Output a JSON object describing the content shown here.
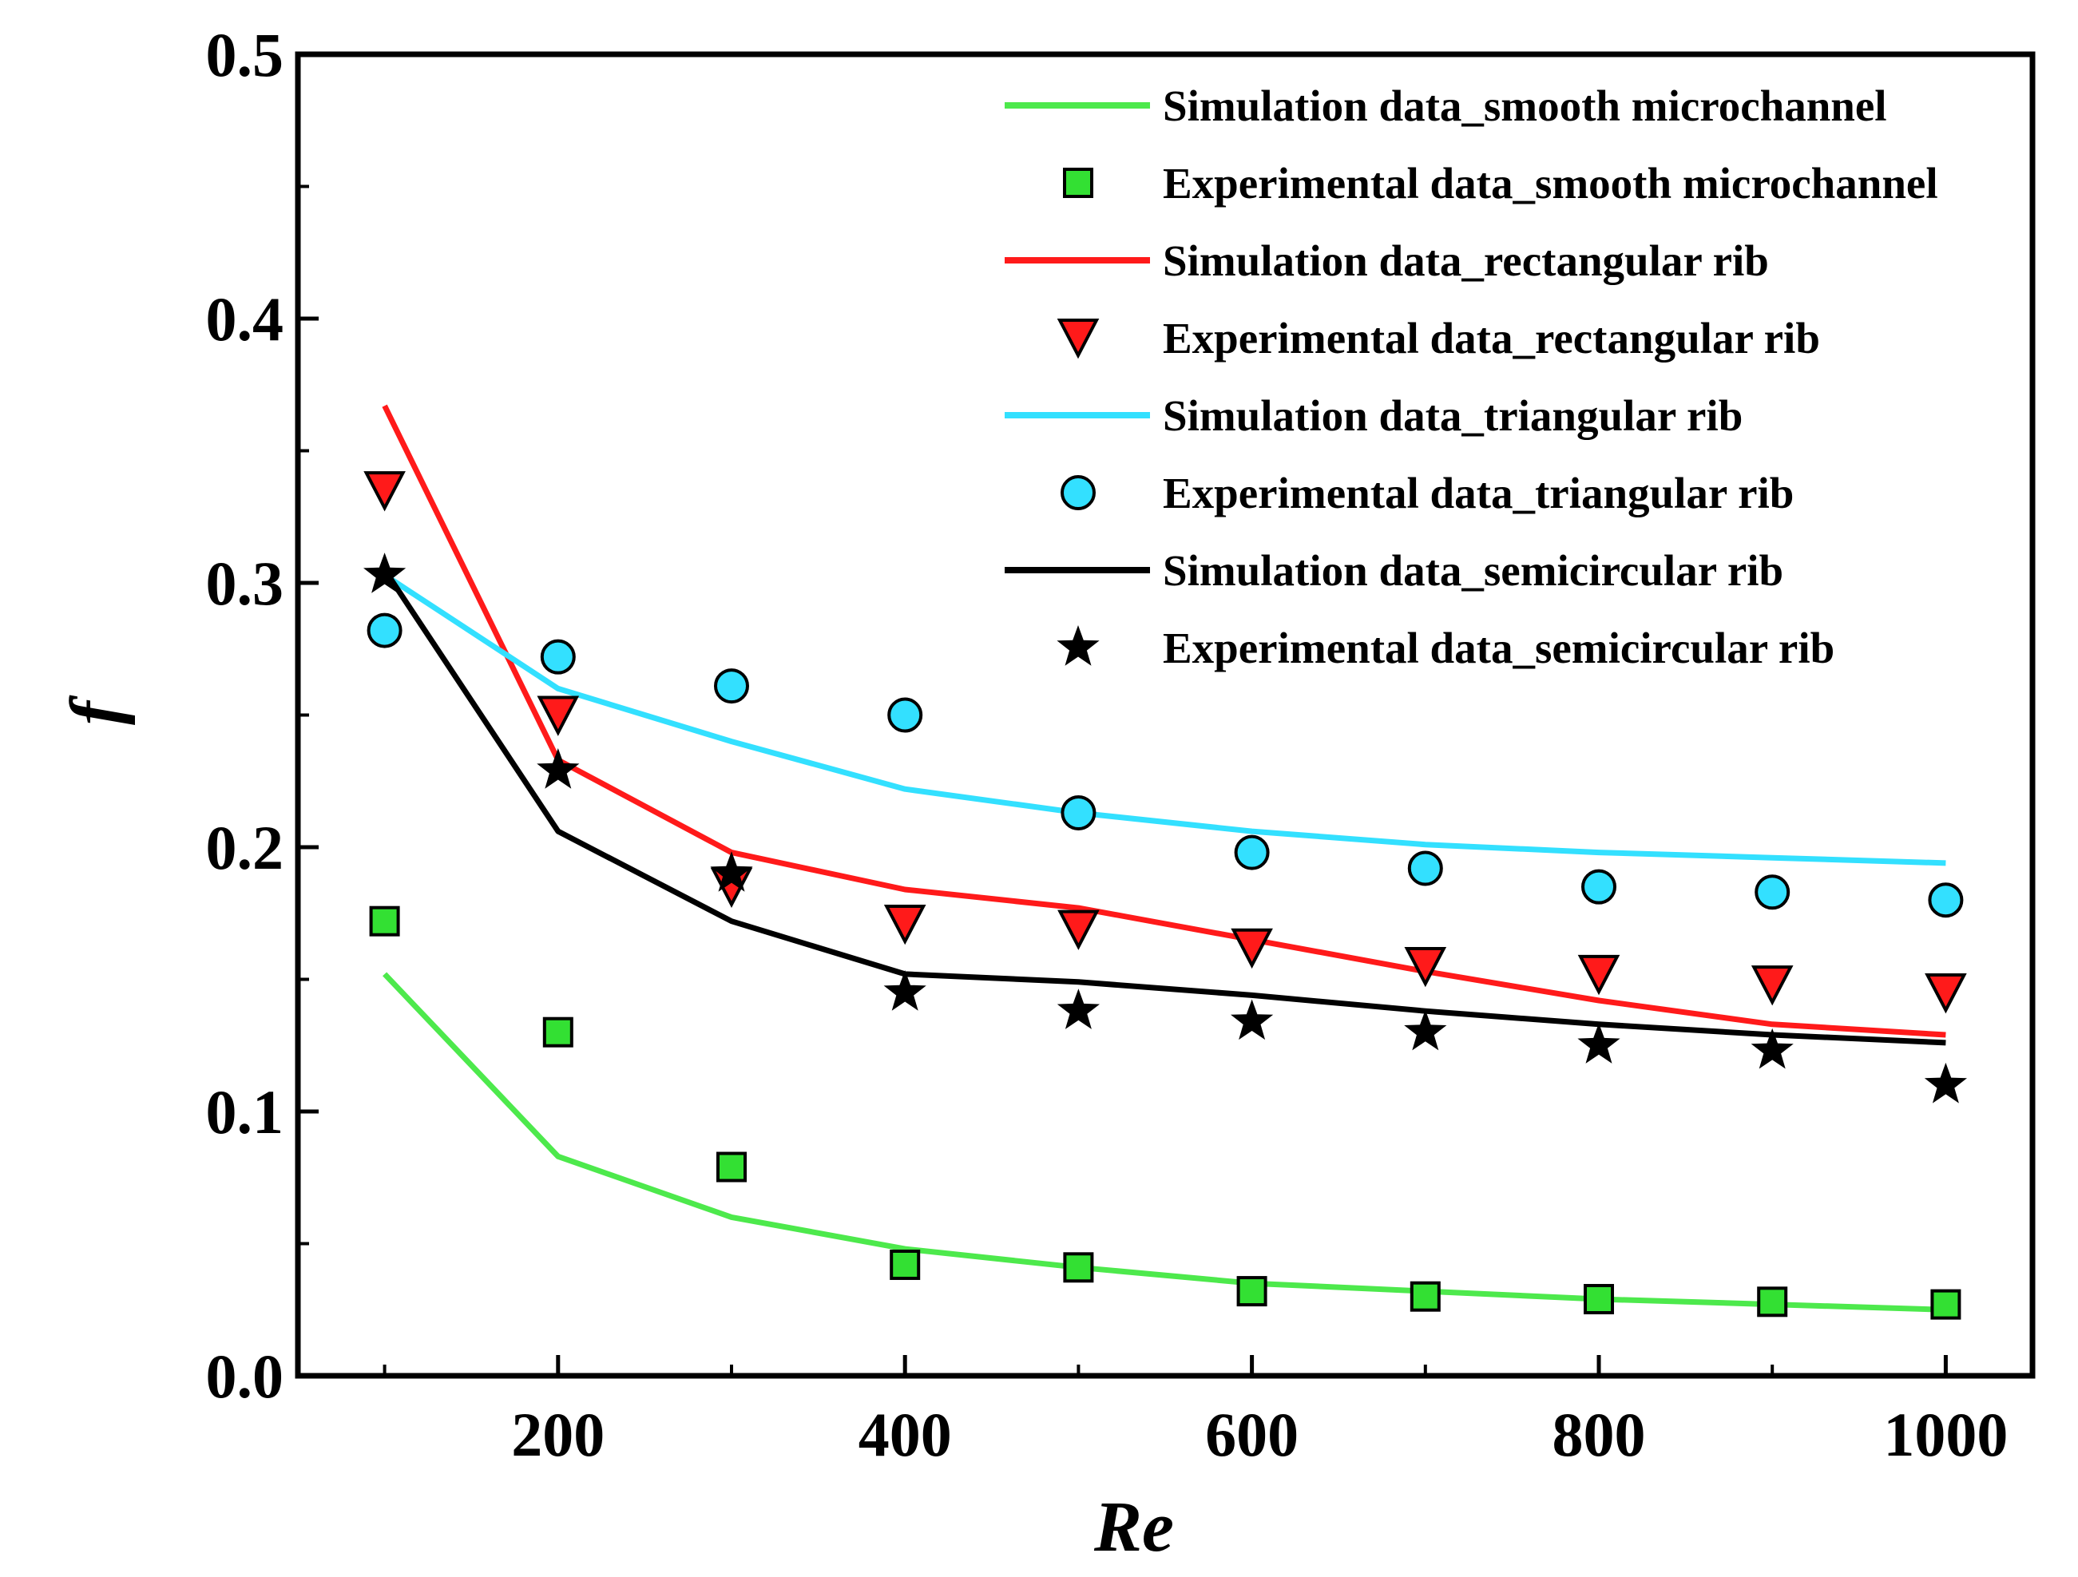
{
  "chart_data": {
    "type": "line",
    "xlabel": "Re",
    "ylabel": "f",
    "xlim": [
      50,
      1050
    ],
    "ylim": [
      0.0,
      0.5
    ],
    "x_ticks": [
      200,
      400,
      600,
      800,
      1000
    ],
    "y_ticks": [
      0.0,
      0.1,
      0.2,
      0.3,
      0.4,
      0.5
    ],
    "x_tick_labels": [
      "200",
      "400",
      "600",
      "800",
      "1000"
    ],
    "y_tick_labels": [
      "0.0",
      "0.1",
      "0.2",
      "0.3",
      "0.4",
      "0.5"
    ],
    "legend_position": "top-right",
    "grid": false,
    "x": [
      100,
      200,
      300,
      400,
      500,
      600,
      700,
      800,
      900,
      1000
    ],
    "series": [
      {
        "name": "Simulation data_smooth microchannel",
        "kind": "line",
        "color": "#4de94c",
        "values": [
          0.152,
          0.083,
          0.06,
          0.048,
          0.041,
          0.035,
          0.032,
          0.029,
          0.027,
          0.025
        ]
      },
      {
        "name": "Experimental data_smooth microchannel",
        "kind": "marker",
        "marker": "square",
        "color": "#33e033",
        "values": [
          0.172,
          0.13,
          0.079,
          0.042,
          0.041,
          0.032,
          0.03,
          0.029,
          0.028,
          0.027
        ]
      },
      {
        "name": "Simulation data_rectangular rib",
        "kind": "line",
        "color": "#ff1a1a",
        "values": [
          0.367,
          0.233,
          0.198,
          0.184,
          0.177,
          0.165,
          0.153,
          0.142,
          0.133,
          0.129
        ]
      },
      {
        "name": "Experimental data_rectangular rib",
        "kind": "marker",
        "marker": "triangle-down",
        "color": "#ff1a1a",
        "values": [
          0.335,
          0.25,
          0.185,
          0.171,
          0.169,
          0.162,
          0.155,
          0.152,
          0.148,
          0.145
        ]
      },
      {
        "name": "Simulation data_triangular rib",
        "kind": "line",
        "color": "#33e0ff",
        "values": [
          0.303,
          0.26,
          0.24,
          0.222,
          0.213,
          0.206,
          0.201,
          0.198,
          0.196,
          0.194
        ]
      },
      {
        "name": "Experimental data_triangular rib",
        "kind": "marker",
        "marker": "circle",
        "color": "#33e0ff",
        "values": [
          0.282,
          0.272,
          0.261,
          0.25,
          0.213,
          0.198,
          0.192,
          0.185,
          0.183,
          0.18
        ]
      },
      {
        "name": "Simulation data_semicircular rib",
        "kind": "line",
        "color": "#000000",
        "values": [
          0.305,
          0.206,
          0.172,
          0.152,
          0.149,
          0.144,
          0.138,
          0.133,
          0.129,
          0.126
        ]
      },
      {
        "name": "Experimental data_semicircular rib",
        "kind": "marker",
        "marker": "star",
        "color": "#000000",
        "values": [
          0.303,
          0.229,
          0.19,
          0.145,
          0.138,
          0.134,
          0.13,
          0.125,
          0.123,
          0.11
        ]
      }
    ]
  }
}
